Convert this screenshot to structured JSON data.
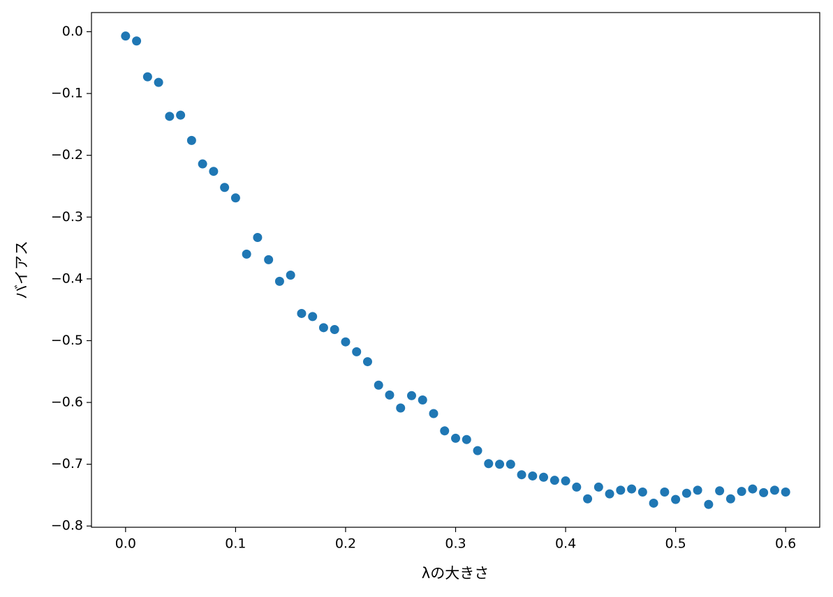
{
  "chart_data": {
    "type": "scatter",
    "color": "#1f77b4",
    "x_label": "λの大きさ",
    "y_label": "バイアス",
    "x": [
      0.0,
      0.01,
      0.02,
      0.03,
      0.04,
      0.05,
      0.06,
      0.07,
      0.08,
      0.09,
      0.1,
      0.11,
      0.12,
      0.13,
      0.14,
      0.15,
      0.16,
      0.17,
      0.18,
      0.19,
      0.2,
      0.21,
      0.22,
      0.23,
      0.24,
      0.25,
      0.26,
      0.27,
      0.28,
      0.29,
      0.3,
      0.31,
      0.32,
      0.33,
      0.34,
      0.35,
      0.36,
      0.37,
      0.38,
      0.39,
      0.4,
      0.41,
      0.42,
      0.43,
      0.44,
      0.45,
      0.46,
      0.47,
      0.48,
      0.49,
      0.5,
      0.51,
      0.52,
      0.53,
      0.54,
      0.55,
      0.56,
      0.57,
      0.58,
      0.59,
      0.6
    ],
    "values": [
      -0.007,
      -0.015,
      -0.073,
      -0.082,
      -0.137,
      -0.135,
      -0.176,
      -0.214,
      -0.226,
      -0.252,
      -0.269,
      -0.36,
      -0.333,
      -0.369,
      -0.404,
      -0.394,
      -0.456,
      -0.461,
      -0.479,
      -0.482,
      -0.502,
      -0.518,
      -0.534,
      -0.572,
      -0.588,
      -0.609,
      -0.589,
      -0.596,
      -0.618,
      -0.646,
      -0.658,
      -0.66,
      -0.678,
      -0.699,
      -0.7,
      -0.7,
      -0.717,
      -0.719,
      -0.721,
      -0.726,
      -0.727,
      -0.737,
      -0.756,
      -0.737,
      -0.748,
      -0.742,
      -0.74,
      -0.745,
      -0.763,
      -0.745,
      -0.757,
      -0.747,
      -0.742,
      -0.765,
      -0.743,
      -0.756,
      -0.744,
      -0.74,
      -0.746,
      -0.742,
      -0.745
    ],
    "xlim": [
      -0.031,
      0.631
    ],
    "ylim": [
      -0.802,
      0.031
    ],
    "xticks": [
      {
        "value": 0,
        "label": "0.0"
      },
      0.1,
      0.2,
      0.3,
      0.4,
      0.5,
      0.6
    ],
    "yticks": [
      {
        "value": 0,
        "label": "0.0"
      },
      {
        "value": -0.1,
        "label": "−0.1"
      },
      {
        "value": -0.2,
        "label": "−0.2"
      },
      {
        "value": -0.3,
        "label": "−0.3"
      },
      {
        "value": -0.4,
        "label": "−0.4"
      },
      {
        "value": -0.5,
        "label": "−0.5"
      },
      {
        "value": -0.6,
        "label": "−0.6"
      },
      {
        "value": -0.7,
        "label": "−0.7"
      },
      {
        "value": -0.8,
        "label": "−0.8"
      }
    ]
  }
}
